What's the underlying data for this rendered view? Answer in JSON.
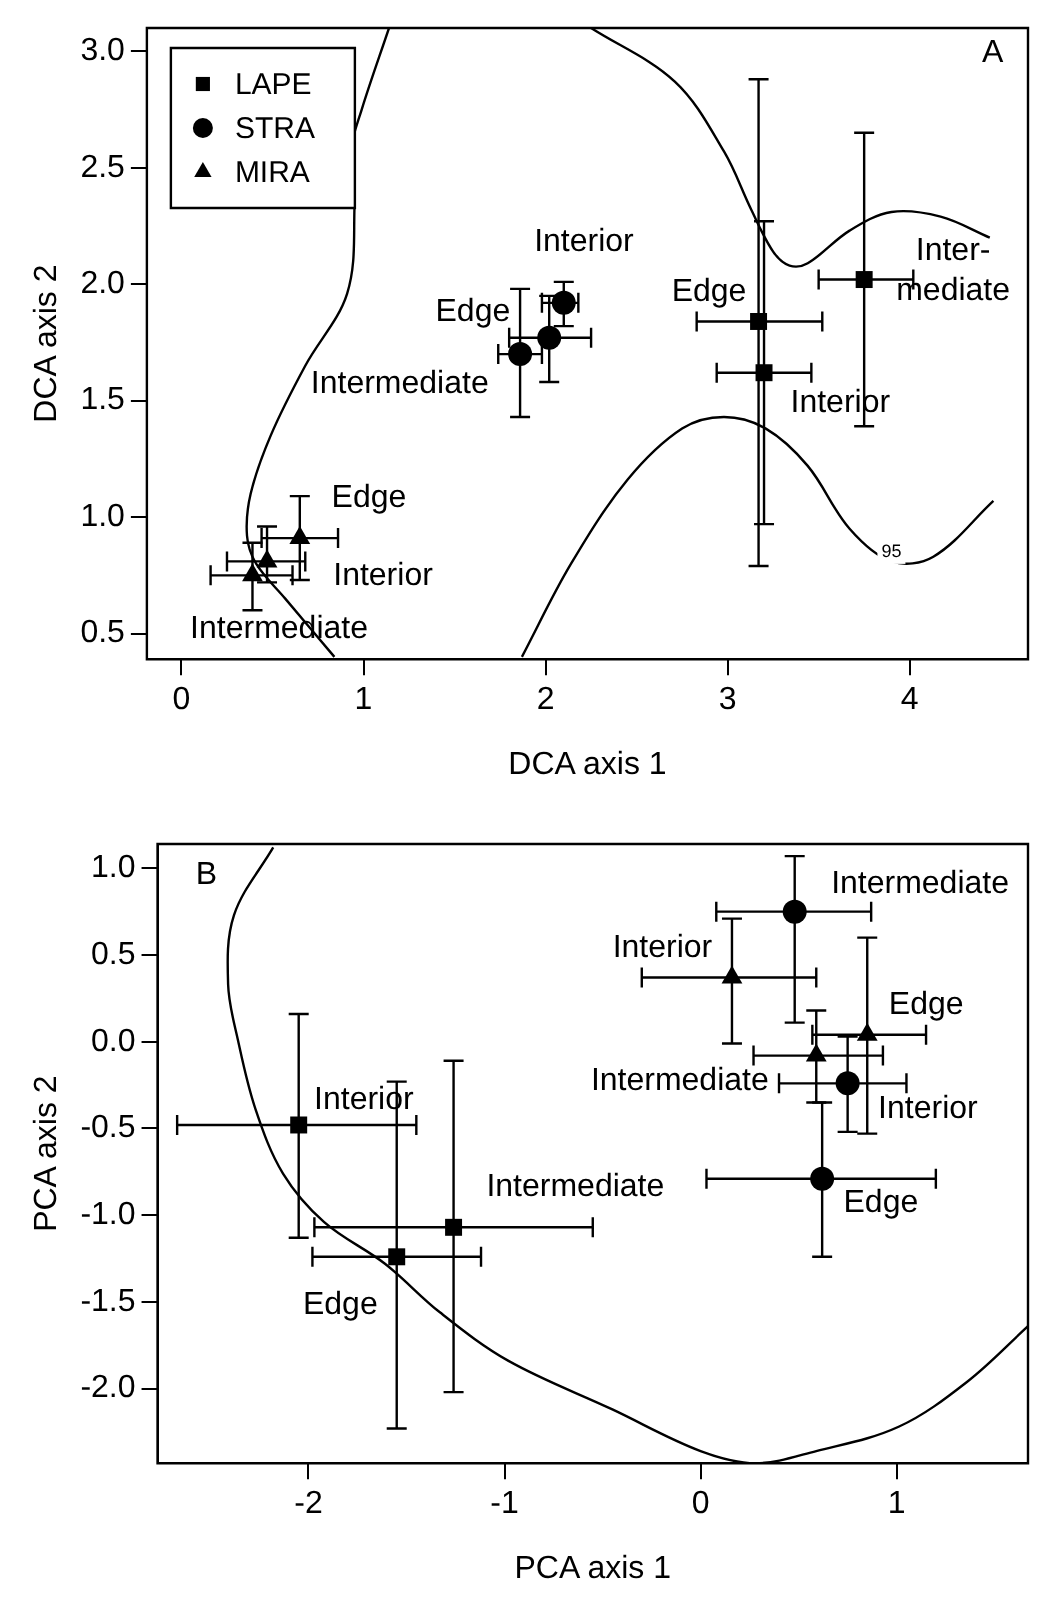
{
  "chart_data": [
    {
      "type": "scatter",
      "xlabel": "DCA axis 1",
      "ylabel": "DCA axis 2",
      "xlim": [
        -0.19,
        4.65
      ],
      "ylim": [
        0.39,
        3.1
      ],
      "xticks": [
        0,
        1,
        2,
        3,
        4
      ],
      "yticks": [
        {
          "value": 0.5,
          "label": "0.5"
        },
        {
          "value": 1,
          "label": "1.0"
        },
        {
          "value": 1.5,
          "label": "1.5"
        },
        {
          "value": 2,
          "label": "2.0"
        },
        {
          "value": 2.5,
          "label": "2.5"
        },
        {
          "value": 3,
          "label": "3.0"
        }
      ],
      "grid": false,
      "legend": "top left",
      "series": [
        {
          "name": "LAPE",
          "marker": "square",
          "color": "#000000",
          "x": [
            3.17,
            3.2,
            3.75
          ],
          "values": [
            1.84,
            1.62,
            2.02
          ],
          "errors": [
            [
              0.79,
              2.88
            ],
            [
              0.97,
              2.27
            ],
            [
              1.39,
              2.65
            ]
          ],
          "xerrors": [
            [
              2.83,
              3.52
            ],
            [
              2.94,
              3.46
            ],
            [
              3.5,
              4.02
            ]
          ]
        },
        {
          "name": "STRA",
          "marker": "circle",
          "color": "#000000",
          "x": [
            2.1,
            2.02,
            1.86
          ],
          "values": [
            1.92,
            1.77,
            1.7
          ],
          "errors": [
            [
              1.82,
              2.01
            ],
            [
              1.58,
              1.95
            ],
            [
              1.43,
              1.98
            ]
          ],
          "xerrors": [
            [
              1.98,
              2.18
            ],
            [
              1.8,
              2.25
            ],
            [
              1.74,
              1.98
            ]
          ]
        },
        {
          "name": "MIRA",
          "marker": "triangle",
          "color": "#000000",
          "x": [
            0.65,
            0.47,
            0.39
          ],
          "values": [
            0.91,
            0.81,
            0.75
          ],
          "errors": [
            [
              0.73,
              1.09
            ],
            [
              0.72,
              0.96
            ],
            [
              0.6,
              0.89
            ]
          ],
          "xerrors": [
            [
              0.44,
              0.86
            ],
            [
              0.25,
              0.68
            ],
            [
              0.16,
              0.61
            ]
          ]
        },
        {
          "type": "line",
          "marker": "none",
          "color": "#000000",
          "x": [
            1.14,
            0.99,
            0.93,
            0.95,
            0.91,
            0.68,
            0.49,
            0.38,
            0.36,
            0.41,
            0.57,
            0.84
          ],
          "values": [
            3.1,
            2.75,
            2.57,
            2.32,
            1.96,
            1.65,
            1.35,
            1.1,
            0.92,
            0.8,
            0.65,
            0.4
          ]
        },
        {
          "type": "line",
          "marker": "none",
          "color": "#000000",
          "x": [
            2.25,
            2.71,
            2.98,
            3.13,
            3.25,
            3.34,
            3.44,
            3.67,
            3.9,
            4.17,
            4.44
          ],
          "values": [
            3.1,
            2.87,
            2.57,
            2.32,
            2.14,
            2.08,
            2.09,
            2.23,
            2.31,
            2.29,
            2.2
          ]
        },
        {
          "type": "line",
          "marker": "none",
          "color": "#000000",
          "x": [
            1.87,
            2.14,
            2.45,
            2.75,
            2.98,
            3.21,
            3.44,
            3.67,
            3.9,
            4.13,
            4.46
          ],
          "values": [
            0.4,
            0.8,
            1.16,
            1.38,
            1.43,
            1.38,
            1.22,
            0.95,
            0.81,
            0.83,
            1.07
          ]
        }
      ],
      "annotations": [
        "A",
        "Interior",
        "Edge",
        "Intermediate",
        "Edge",
        "Inter-\nmediate",
        "Interior",
        "Edge",
        "Interior",
        "Intermediate",
        "95"
      ]
    },
    {
      "type": "scatter",
      "xlabel": "PCA axis 1",
      "ylabel": "PCA axis 2",
      "xlim": [
        -2.77,
        1.67
      ],
      "ylim": [
        -2.43,
        1.14
      ],
      "xticks": [
        -2,
        -1,
        0,
        1
      ],
      "yticks": [
        {
          "value": -2,
          "label": "-2.0"
        },
        {
          "value": -1.5,
          "label": "-1.5"
        },
        {
          "value": -1,
          "label": "-1.0"
        },
        {
          "value": -0.5,
          "label": "-0.5"
        },
        {
          "value": 0,
          "label": "0.0"
        },
        {
          "value": 0.5,
          "label": "0.5"
        },
        {
          "value": 1,
          "label": "1.0"
        }
      ],
      "grid": false,
      "series": [
        {
          "marker": "square",
          "color": "#000000",
          "x": [
            -2.05,
            -1.55,
            -1.26
          ],
          "values": [
            -0.48,
            -1.24,
            -1.07
          ],
          "errors": [
            [
              -1.13,
              0.16
            ],
            [
              -2.23,
              -0.23
            ],
            [
              -2.02,
              -0.11
            ]
          ],
          "xerrors": [
            [
              -2.67,
              -1.45
            ],
            [
              -1.98,
              -1.12
            ],
            [
              -1.97,
              -0.55
            ]
          ]
        },
        {
          "marker": "circle",
          "color": "#000000",
          "x": [
            0.48,
            0.75,
            0.62
          ],
          "values": [
            0.75,
            -0.24,
            -0.79
          ],
          "errors": [
            [
              0.11,
              1.07
            ],
            [
              -0.52,
              0.03
            ],
            [
              -1.24,
              -0.35
            ]
          ],
          "xerrors": [
            [
              0.08,
              0.87
            ],
            [
              0.4,
              1.05
            ],
            [
              0.03,
              1.2
            ]
          ]
        },
        {
          "marker": "triangle",
          "color": "#000000",
          "x": [
            0.16,
            0.85,
            0.59
          ],
          "values": [
            0.37,
            0.04,
            -0.08
          ],
          "errors": [
            [
              -0.01,
              0.71
            ],
            [
              -0.53,
              0.6
            ],
            [
              -0.35,
              0.18
            ]
          ],
          "xerrors": [
            [
              -0.3,
              0.59
            ],
            [
              0.57,
              1.15
            ],
            [
              0.27,
              0.93
            ]
          ]
        },
        {
          "type": "line",
          "marker": "none",
          "color": "#000000",
          "x": [
            -2.18,
            -2.38,
            -2.41,
            -2.36,
            -2.27,
            -2.13,
            -1.92,
            -1.61,
            -1.33,
            -0.98,
            -0.45,
            0,
            0.28,
            0.59,
            1.01,
            1.36,
            1.67
          ],
          "values": [
            1.12,
            0.73,
            0.33,
            0.01,
            -0.39,
            -0.76,
            -1.04,
            -1.28,
            -1.56,
            -1.84,
            -2.12,
            -2.36,
            -2.43,
            -2.36,
            -2.22,
            -1.96,
            -1.64
          ]
        }
      ],
      "annotations": [
        "B",
        "Intermediate",
        "Interior",
        "Edge",
        "Intermediate",
        "Interior",
        "Edge",
        "Interior",
        "Intermediate",
        "Edge"
      ]
    }
  ]
}
